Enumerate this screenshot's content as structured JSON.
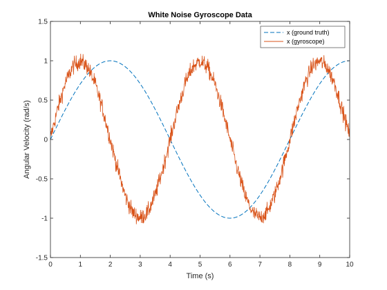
{
  "chart_data": {
    "type": "line",
    "title": "White Noise Gyroscope Data",
    "xlabel": "Time (s)",
    "ylabel": "Angular Velocity (rad/s)",
    "xlim": [
      0,
      10
    ],
    "ylim": [
      -1.5,
      1.5
    ],
    "x_ticks": [
      "0",
      "1",
      "2",
      "3",
      "4",
      "5",
      "6",
      "7",
      "8",
      "9",
      "10"
    ],
    "y_ticks": [
      "-1.5",
      "-1",
      "-0.5",
      "0",
      "0.5",
      "1",
      "1.5"
    ],
    "grid": false,
    "legend_position": "top-right",
    "series": [
      {
        "name": "x (ground truth)",
        "style": "dashed",
        "color": "#0072BD",
        "x": [
          0,
          0.5,
          1,
          1.5,
          2,
          2.5,
          3,
          3.5,
          4,
          4.5,
          5,
          5.5,
          6,
          6.5,
          7,
          7.5,
          8,
          8.5,
          9,
          9.5,
          10
        ],
        "y": [
          0,
          0.71,
          1.0,
          0.71,
          0,
          -0.71,
          -1.0,
          -0.71,
          0,
          0.71,
          1.0,
          0.71,
          0,
          -0.71,
          -1.0,
          -0.71,
          0,
          0.71,
          1.0,
          0.71,
          0
        ]
      },
      {
        "name": "x (gyroscope)",
        "style": "solid",
        "color": "#D95319",
        "x": [
          0,
          0.25,
          0.5,
          0.75,
          1,
          1.25,
          1.5,
          1.75,
          2,
          2.25,
          2.5,
          2.75,
          3,
          3.25,
          3.5,
          3.75,
          4,
          4.25,
          4.5,
          4.75,
          5,
          5.25,
          5.5,
          5.75,
          6,
          6.25,
          6.5,
          6.75,
          7,
          7.25,
          7.5,
          7.75,
          8,
          8.25,
          8.5,
          8.75,
          9,
          9.25,
          9.5,
          9.75,
          10
        ],
        "y": [
          0.02,
          0.4,
          0.72,
          0.93,
          1.0,
          0.92,
          0.7,
          0.38,
          0.0,
          -0.38,
          -0.72,
          -0.93,
          -1.0,
          -0.93,
          -0.71,
          -0.38,
          0.0,
          0.38,
          0.71,
          0.92,
          1.0,
          0.92,
          0.7,
          0.38,
          0.0,
          -0.38,
          -0.71,
          -0.93,
          -1.0,
          -0.92,
          -0.7,
          -0.38,
          0.0,
          0.38,
          0.71,
          0.93,
          1.0,
          0.92,
          0.71,
          0.38,
          0.05
        ],
        "noise_amplitude": 0.1
      }
    ]
  },
  "colors": {
    "axes": "#262626",
    "ground_truth": "#0072BD",
    "gyroscope": "#D95319"
  }
}
